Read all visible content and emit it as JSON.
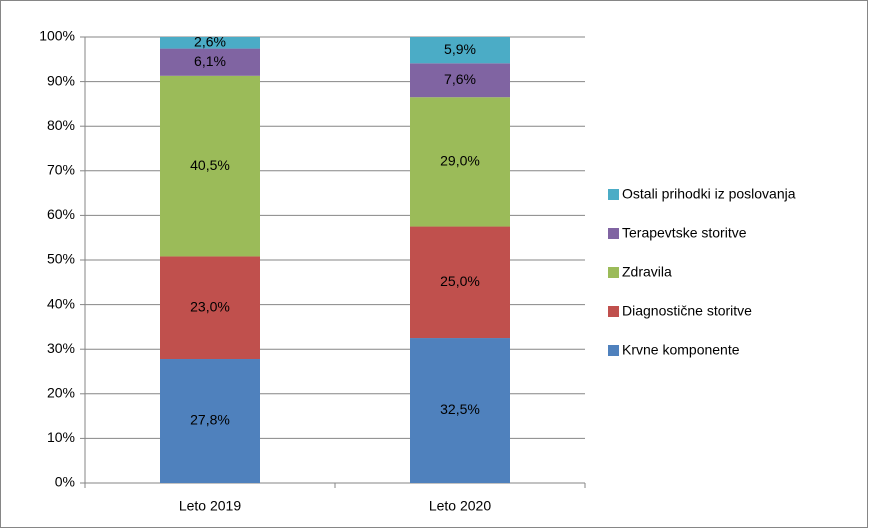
{
  "chart_data": {
    "type": "stacked_bar",
    "categories": [
      "Leto 2019",
      "Leto 2020"
    ],
    "series": [
      {
        "name": "Krvne komponente",
        "color": "#4f81bd",
        "values": [
          27.8,
          32.5
        ],
        "value_labels": [
          "27,8%",
          "32,5%"
        ]
      },
      {
        "name": "Diagnostične storitve",
        "color": "#c0504d",
        "values": [
          23.0,
          25.0
        ],
        "value_labels": [
          "23,0%",
          "25,0%"
        ]
      },
      {
        "name": "Zdravila",
        "color": "#9bbb59",
        "values": [
          40.5,
          29.0
        ],
        "value_labels": [
          "40,5%",
          "29,0%"
        ]
      },
      {
        "name": "Terapevtske storitve",
        "color": "#8064a2",
        "values": [
          6.1,
          7.6
        ],
        "value_labels": [
          "6,1%",
          "7,6%"
        ]
      },
      {
        "name": "Ostali prihodki iz poslovanja",
        "color": "#4bacc6",
        "values": [
          2.6,
          5.9
        ],
        "value_labels": [
          "2,6%",
          "5,9%"
        ]
      }
    ],
    "ylim": [
      0,
      100
    ],
    "yticks": [
      {
        "value": 0,
        "label": "0%"
      },
      {
        "value": 10,
        "label": "10%"
      },
      {
        "value": 20,
        "label": "20%"
      },
      {
        "value": 30,
        "label": "30%"
      },
      {
        "value": 40,
        "label": "40%"
      },
      {
        "value": 50,
        "label": "50%"
      },
      {
        "value": 60,
        "label": "60%"
      },
      {
        "value": 70,
        "label": "70%"
      },
      {
        "value": 80,
        "label": "80%"
      },
      {
        "value": 90,
        "label": "90%"
      },
      {
        "value": 100,
        "label": "100%"
      }
    ],
    "grid": true,
    "legend": "right"
  }
}
